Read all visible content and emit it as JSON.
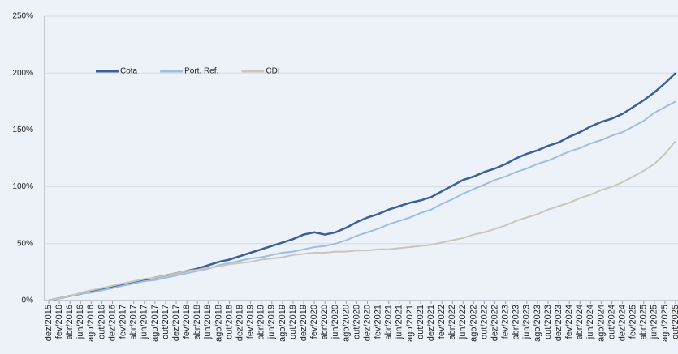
{
  "chart_data": {
    "type": "line",
    "categories": [
      "dez/2015",
      "fev/2016",
      "abr/2016",
      "jun/2016",
      "ago/2016",
      "out/2016",
      "dez/2016",
      "fev/2017",
      "abr/2017",
      "jun/2017",
      "ago/2017",
      "out/2017",
      "dez/2017",
      "fev/2018",
      "abr/2018",
      "jun/2018",
      "ago/2018",
      "out/2018",
      "dez/2018",
      "fev/2019",
      "abr/2019",
      "jun/2019",
      "ago/2019",
      "out/2019",
      "dez/2019",
      "fev/2020",
      "abr/2020",
      "jun/2020",
      "ago/2020",
      "out/2020",
      "dez/2020",
      "fev/2021",
      "abr/2021",
      "jun/2021",
      "ago/2021",
      "out/2021",
      "dez/2021",
      "fev/2022",
      "abr/2022",
      "jun/2022",
      "ago/2022",
      "out/2022",
      "dez/2022",
      "fev/2023",
      "abr/2023",
      "jun/2023",
      "ago/2023",
      "out/2023",
      "dez/2023",
      "fev/2024",
      "abr/2024",
      "jun/2024",
      "ago/2024",
      "out/2024",
      "dez/2024",
      "fev/2025",
      "abr/2025",
      "jun/2025",
      "ago/2025",
      "out/2025"
    ],
    "series": [
      {
        "name": "Cota",
        "color": "#3b5f98",
        "values": [
          0,
          2,
          4,
          6,
          8,
          10,
          12,
          14,
          16,
          18,
          20,
          22,
          24,
          26,
          28,
          31,
          34,
          36,
          39,
          42,
          45,
          48,
          51,
          54,
          58,
          60,
          58,
          60,
          64,
          69,
          73,
          76,
          80,
          83,
          86,
          88,
          91,
          96,
          101,
          106,
          109,
          113,
          116,
          120,
          125,
          129,
          132,
          136,
          139,
          144,
          148,
          153,
          157,
          160,
          164,
          170,
          176,
          183,
          191,
          200
        ]
      },
      {
        "name": "Port. Ref.",
        "color": "#9dbde6",
        "values": [
          0,
          2,
          4,
          6,
          7,
          9,
          11,
          13,
          15,
          17,
          18,
          20,
          22,
          24,
          26,
          28,
          31,
          33,
          35,
          37,
          38,
          40,
          42,
          43,
          45,
          47,
          48,
          50,
          53,
          57,
          60,
          63,
          67,
          70,
          73,
          77,
          80,
          85,
          89,
          94,
          98,
          102,
          106,
          109,
          113,
          116,
          120,
          123,
          127,
          131,
          134,
          138,
          141,
          145,
          148,
          153,
          158,
          165,
          170,
          175
        ]
      },
      {
        "name": "CDI",
        "color": "#c9c6bb",
        "values": [
          0,
          2,
          4,
          7,
          9,
          11,
          13,
          15,
          17,
          19,
          20,
          22,
          24,
          26,
          27,
          29,
          30,
          32,
          33,
          34,
          36,
          37,
          38,
          40,
          41,
          42,
          42,
          43,
          43,
          44,
          44,
          45,
          45,
          46,
          47,
          48,
          49,
          51,
          53,
          55,
          58,
          60,
          63,
          66,
          70,
          73,
          76,
          80,
          83,
          86,
          90,
          93,
          97,
          100,
          104,
          109,
          114,
          120,
          129,
          140
        ]
      }
    ],
    "ylim": [
      0,
      250
    ],
    "yticks": [
      {
        "value": 0,
        "label": "0%"
      },
      {
        "value": 50,
        "label": "50%"
      },
      {
        "value": 100,
        "label": "100%"
      },
      {
        "value": 150,
        "label": "150%"
      },
      {
        "value": 200,
        "label": "200%"
      },
      {
        "value": 250,
        "label": "250%"
      }
    ],
    "grid": true,
    "legend": "upper left"
  }
}
